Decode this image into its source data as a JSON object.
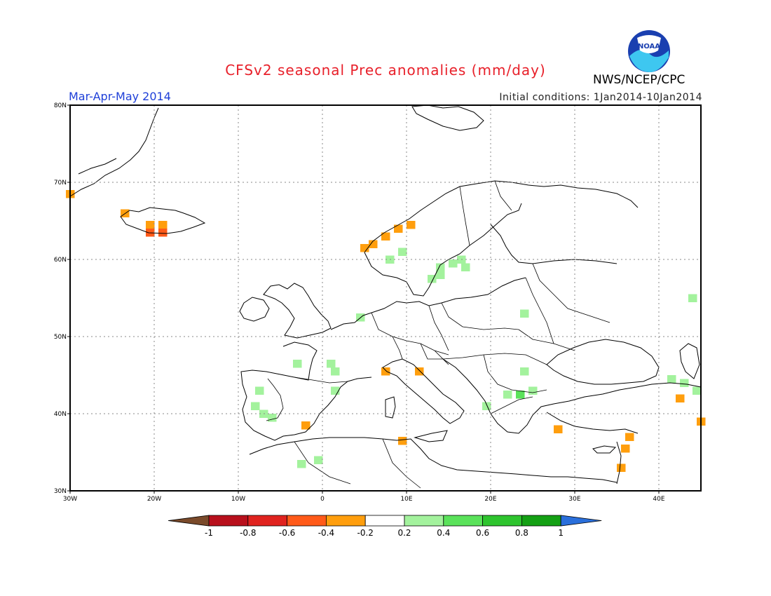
{
  "title": "CFSv2 seasonal Prec anomalies (mm/day)",
  "season": "Mar-Apr-May 2014",
  "initial_conditions": "Initial conditions: 1Jan2014-10Jan2014",
  "agency": "NWS/NCEP/CPC",
  "logo_text": "NOAA",
  "map": {
    "lon_range": [
      -30,
      45
    ],
    "lat_range": [
      30,
      80
    ],
    "lon_ticks": [
      "30W",
      "20W",
      "10W",
      "0",
      "10E",
      "20E",
      "30E",
      "40E"
    ],
    "lat_ticks": [
      "80N",
      "70N",
      "60N",
      "50N",
      "40N",
      "30N"
    ]
  },
  "legend": {
    "labels": [
      "-1",
      "-0.8",
      "-0.6",
      "-0.4",
      "-0.2",
      "0.2",
      "0.4",
      "0.6",
      "0.8",
      "1"
    ],
    "colors": [
      "#7a4a2a",
      "#b8101c",
      "#e0231f",
      "#ff5a19",
      "#ff9e0d",
      "#ffffff",
      "#a3f29d",
      "#5ae25a",
      "#2ec42e",
      "#14a014",
      "#2a6fdb"
    ]
  },
  "anomaly_cells": [
    {
      "lon": -30,
      "lat": 68.5,
      "value": -0.3
    },
    {
      "lon": -23.5,
      "lat": 66,
      "value": -0.3
    },
    {
      "lon": -20.5,
      "lat": 64.5,
      "value": -0.3
    },
    {
      "lon": -19,
      "lat": 64.5,
      "value": -0.3
    },
    {
      "lon": -20.5,
      "lat": 63.5,
      "value": -0.5
    },
    {
      "lon": -19,
      "lat": 63.5,
      "value": -0.5
    },
    {
      "lon": 10.5,
      "lat": 64.5,
      "value": -0.3
    },
    {
      "lon": 9,
      "lat": 64,
      "value": -0.3
    },
    {
      "lon": 7.5,
      "lat": 63,
      "value": -0.3
    },
    {
      "lon": 6,
      "lat": 62,
      "value": -0.3
    },
    {
      "lon": 5,
      "lat": 61.5,
      "value": -0.3
    },
    {
      "lon": 8,
      "lat": 60,
      "value": 0.3
    },
    {
      "lon": 9.5,
      "lat": 61,
      "value": 0.3
    },
    {
      "lon": 14,
      "lat": 59,
      "value": 0.3
    },
    {
      "lon": 15.5,
      "lat": 59.5,
      "value": 0.3
    },
    {
      "lon": 16.5,
      "lat": 60,
      "value": 0.3
    },
    {
      "lon": 13,
      "lat": 57.5,
      "value": 0.3
    },
    {
      "lon": 14,
      "lat": 58,
      "value": 0.3
    },
    {
      "lon": 17,
      "lat": 59,
      "value": 0.3
    },
    {
      "lon": 4.5,
      "lat": 52.5,
      "value": 0.3
    },
    {
      "lon": 24,
      "lat": 53,
      "value": 0.3
    },
    {
      "lon": 44,
      "lat": 55,
      "value": 0.3
    },
    {
      "lon": -3,
      "lat": 46.5,
      "value": 0.3
    },
    {
      "lon": 1,
      "lat": 46.5,
      "value": 0.3
    },
    {
      "lon": 1.5,
      "lat": 45.5,
      "value": 0.3
    },
    {
      "lon": 1.5,
      "lat": 43,
      "value": 0.3
    },
    {
      "lon": 7.5,
      "lat": 45.5,
      "value": -0.3
    },
    {
      "lon": 11.5,
      "lat": 45.5,
      "value": -0.3
    },
    {
      "lon": 24,
      "lat": 45.5,
      "value": 0.3
    },
    {
      "lon": -7.5,
      "lat": 43,
      "value": 0.3
    },
    {
      "lon": -8,
      "lat": 41,
      "value": 0.3
    },
    {
      "lon": -7,
      "lat": 40,
      "value": 0.3
    },
    {
      "lon": -6,
      "lat": 39.5,
      "value": 0.3
    },
    {
      "lon": -2,
      "lat": 38.5,
      "value": -0.3
    },
    {
      "lon": 9.5,
      "lat": 36.5,
      "value": -0.3
    },
    {
      "lon": 19.5,
      "lat": 41,
      "value": 0.3
    },
    {
      "lon": 22,
      "lat": 42.5,
      "value": 0.3
    },
    {
      "lon": 23.5,
      "lat": 42.5,
      "value": 0.5
    },
    {
      "lon": 25,
      "lat": 43,
      "value": 0.3
    },
    {
      "lon": 28,
      "lat": 38,
      "value": -0.3
    },
    {
      "lon": 36.5,
      "lat": 37,
      "value": -0.3
    },
    {
      "lon": 36,
      "lat": 35.5,
      "value": -0.3
    },
    {
      "lon": 35.5,
      "lat": 33,
      "value": -0.3
    },
    {
      "lon": -2.5,
      "lat": 33.5,
      "value": 0.3
    },
    {
      "lon": -0.5,
      "lat": 34,
      "value": 0.3
    },
    {
      "lon": 41.5,
      "lat": 44.5,
      "value": 0.3
    },
    {
      "lon": 43,
      "lat": 44,
      "value": 0.3
    },
    {
      "lon": 44.5,
      "lat": 43,
      "value": 0.3
    },
    {
      "lon": 42.5,
      "lat": 42,
      "value": -0.3
    },
    {
      "lon": 45,
      "lat": 39,
      "value": -0.3
    }
  ]
}
